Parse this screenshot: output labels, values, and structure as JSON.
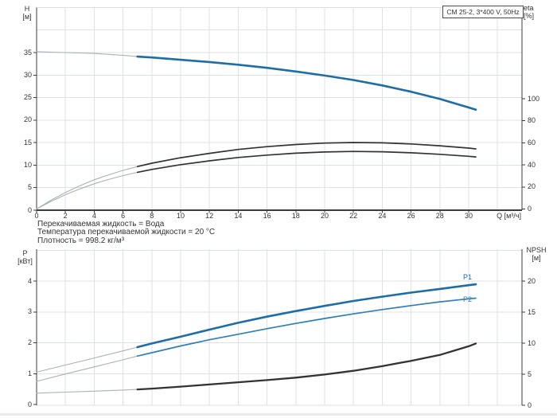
{
  "model_box": {
    "label": "CM 25-2, 3*400 V, 50Hz"
  },
  "info": {
    "lines": [
      "Перекачиваемая жидкость = Вода",
      "Температура перекачиваемой жидкости = 20 °C",
      "Плотность = 998.2 кг/м³"
    ]
  },
  "colors": {
    "curve_blue": "#1d6da6",
    "curve_blue_light": "#2f7fb6",
    "curve_dark": "#333333",
    "thin_gray": "#a9b1b7",
    "grid": "#dce2e6",
    "axis": "#3c3c3c",
    "text": "#333333"
  },
  "chart_data": [
    {
      "id": "head_chart",
      "type": "line",
      "title": "CM 25-2, 3*400 V, 50Hz",
      "xlabel": "Q [м³/ч]",
      "ylabel_left": "H",
      "ylabel_left_unit": "[м]",
      "ylabel_right": "eta",
      "ylabel_right_unit": "[%]",
      "x_range": [
        0,
        33.7
      ],
      "y_left_range": [
        0,
        45
      ],
      "y_right_range": [
        0,
        100
      ],
      "grid": true,
      "x_ticks": [
        0,
        2,
        4,
        6,
        8,
        10,
        12,
        14,
        16,
        18,
        20,
        22,
        24,
        26,
        28,
        30
      ],
      "y_left_ticks": [
        0,
        5,
        10,
        15,
        20,
        25,
        30,
        35
      ],
      "y_right_ticks": [
        0,
        20,
        40,
        60,
        80,
        100
      ],
      "series": [
        {
          "name": "H",
          "label": null,
          "axis": "left",
          "style": "blue-thick",
          "thin_until": 7,
          "points": [
            [
              0,
              35.2
            ],
            [
              2,
              35.0
            ],
            [
              4,
              34.8
            ],
            [
              6,
              34.4
            ],
            [
              7,
              34.1
            ],
            [
              8,
              33.9
            ],
            [
              10,
              33.4
            ],
            [
              12,
              32.9
            ],
            [
              14,
              32.3
            ],
            [
              16,
              31.6
            ],
            [
              18,
              30.8
            ],
            [
              20,
              29.9
            ],
            [
              22,
              28.9
            ],
            [
              24,
              27.7
            ],
            [
              26,
              26.3
            ],
            [
              28,
              24.7
            ],
            [
              30,
              22.8
            ],
            [
              30.5,
              22.3
            ]
          ]
        },
        {
          "name": "eta1",
          "label": null,
          "axis": "right",
          "style": "dark",
          "thin_until": 7,
          "points": [
            [
              0,
              0
            ],
            [
              0.5,
              4
            ],
            [
              1,
              8
            ],
            [
              1.5,
              11.5
            ],
            [
              2,
              15
            ],
            [
              3,
              21
            ],
            [
              4,
              26.5
            ],
            [
              5,
              31
            ],
            [
              6,
              35
            ],
            [
              7,
              38.5
            ],
            [
              8,
              41.5
            ],
            [
              10,
              46.5
            ],
            [
              12,
              50.5
            ],
            [
              14,
              54
            ],
            [
              16,
              56.5
            ],
            [
              18,
              58.5
            ],
            [
              20,
              59.8
            ],
            [
              22,
              60.3
            ],
            [
              24,
              60
            ],
            [
              26,
              59
            ],
            [
              28,
              57.3
            ],
            [
              30,
              55.2
            ],
            [
              30.5,
              54.5
            ]
          ]
        },
        {
          "name": "eta2",
          "label": null,
          "axis": "right",
          "style": "dark",
          "thin_until": 7,
          "points": [
            [
              0,
              0
            ],
            [
              0.5,
              3.4
            ],
            [
              1,
              6.9
            ],
            [
              1.5,
              10
            ],
            [
              2,
              13
            ],
            [
              3,
              18.2
            ],
            [
              4,
              22.9
            ],
            [
              5,
              26.8
            ],
            [
              6,
              30.3
            ],
            [
              7,
              33.3
            ],
            [
              8,
              35.9
            ],
            [
              10,
              40.2
            ],
            [
              12,
              43.7
            ],
            [
              14,
              46.7
            ],
            [
              16,
              48.9
            ],
            [
              18,
              50.6
            ],
            [
              20,
              51.7
            ],
            [
              22,
              52.2
            ],
            [
              24,
              51.9
            ],
            [
              26,
              51
            ],
            [
              28,
              49.6
            ],
            [
              30,
              47.8
            ],
            [
              30.5,
              47.2
            ]
          ]
        }
      ]
    },
    {
      "id": "power_npsh_chart",
      "type": "line",
      "xlabel": "",
      "ylabel_left": "P",
      "ylabel_left_unit": "[кВт]",
      "ylabel_right": "NPSH",
      "ylabel_right_unit": "[м]",
      "x_range": [
        0,
        33.7
      ],
      "y_left_range": [
        0,
        5
      ],
      "y_right_range": [
        0,
        25
      ],
      "grid": true,
      "x_ticks": [],
      "y_left_ticks": [
        0,
        1,
        2,
        3,
        4
      ],
      "y_right_ticks": [
        0,
        5,
        10,
        15,
        20
      ],
      "series": [
        {
          "name": "P1",
          "label": "P1",
          "axis": "left",
          "style": "blue-thick",
          "thin_until": 7,
          "points": [
            [
              0,
              1.05
            ],
            [
              2,
              1.28
            ],
            [
              4,
              1.51
            ],
            [
              6,
              1.74
            ],
            [
              7,
              1.86
            ],
            [
              8,
              1.98
            ],
            [
              10,
              2.2
            ],
            [
              12,
              2.43
            ],
            [
              14,
              2.65
            ],
            [
              16,
              2.85
            ],
            [
              18,
              3.03
            ],
            [
              20,
              3.2
            ],
            [
              22,
              3.36
            ],
            [
              24,
              3.5
            ],
            [
              26,
              3.63
            ],
            [
              28,
              3.75
            ],
            [
              30,
              3.87
            ],
            [
              30.5,
              3.9
            ]
          ]
        },
        {
          "name": "P2",
          "label": "P2",
          "axis": "left",
          "style": "blue-medium",
          "thin_until": 7,
          "points": [
            [
              0,
              0.75
            ],
            [
              2,
              0.99
            ],
            [
              4,
              1.22
            ],
            [
              6,
              1.45
            ],
            [
              7,
              1.57
            ],
            [
              8,
              1.68
            ],
            [
              10,
              1.9
            ],
            [
              12,
              2.1
            ],
            [
              14,
              2.28
            ],
            [
              16,
              2.46
            ],
            [
              18,
              2.63
            ],
            [
              20,
              2.79
            ],
            [
              22,
              2.94
            ],
            [
              24,
              3.08
            ],
            [
              26,
              3.21
            ],
            [
              28,
              3.33
            ],
            [
              30,
              3.43
            ],
            [
              30.5,
              3.45
            ]
          ]
        },
        {
          "name": "NPSH",
          "label": null,
          "axis": "right",
          "style": "dark-thick",
          "thin_until": 7,
          "points": [
            [
              0,
              1.95
            ],
            [
              2,
              2.12
            ],
            [
              4,
              2.27
            ],
            [
              6,
              2.45
            ],
            [
              7,
              2.55
            ],
            [
              8,
              2.68
            ],
            [
              10,
              3.0
            ],
            [
              12,
              3.35
            ],
            [
              14,
              3.7
            ],
            [
              16,
              4.05
            ],
            [
              18,
              4.45
            ],
            [
              20,
              4.95
            ],
            [
              22,
              5.55
            ],
            [
              24,
              6.3
            ],
            [
              26,
              7.15
            ],
            [
              28,
              8.1
            ],
            [
              30,
              9.5
            ],
            [
              30.5,
              9.95
            ]
          ]
        }
      ]
    }
  ]
}
